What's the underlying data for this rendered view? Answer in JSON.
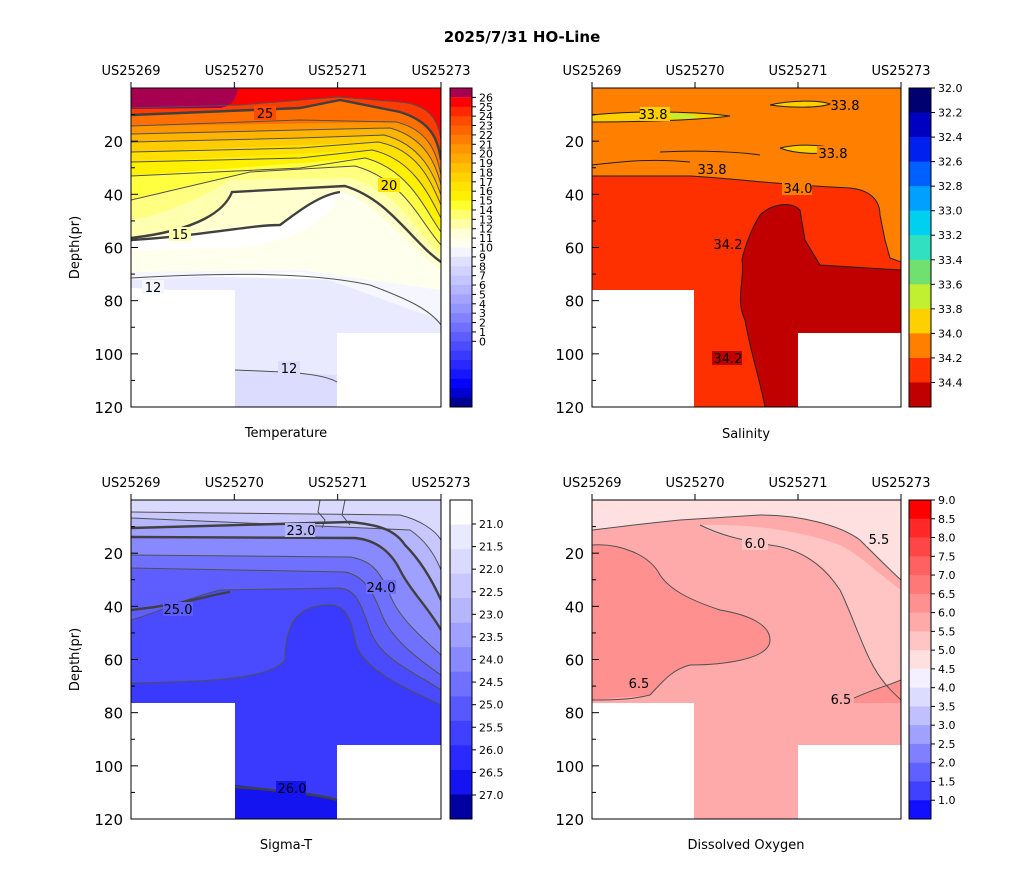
{
  "figure": {
    "title": "2025/7/31  HO-Line"
  },
  "chart_data": [
    {
      "type": "heatmap",
      "title": "Temperature",
      "ylabel": "Depth(pr)",
      "stations": [
        "US25269",
        "US25270",
        "US25271",
        "US25273"
      ],
      "yticks": [
        20,
        40,
        60,
        80,
        100,
        120
      ],
      "ylim": [
        0,
        120
      ],
      "colorbar": {
        "ticks": [
          "26",
          "25",
          "24",
          "23",
          "22",
          "21",
          "20",
          "19",
          "18",
          "17",
          "16",
          "15",
          "14",
          "13",
          "12",
          "11",
          "10",
          "9",
          "8",
          "7",
          "6",
          "5",
          "4",
          "3",
          "2",
          "1",
          "0"
        ]
      },
      "contour_labels": [
        "25",
        "20",
        "15",
        "12",
        "12"
      ],
      "colors": {
        "warm": [
          "#ff0000",
          "#ff2800",
          "#ff4a00",
          "#ff6400",
          "#ff7d00",
          "#ff9600",
          "#ffaa00",
          "#ffc000",
          "#ffd200",
          "#ffe400",
          "#fff000",
          "#ffff30",
          "#ffff70",
          "#ffffa8",
          "#ffffd8",
          "#ffffee",
          "#f4f4ff"
        ],
        "cool": [
          "#e0e0ff",
          "#d2d2ff",
          "#c4c4ff",
          "#b4b4ff",
          "#a4a4ff",
          "#9494ff",
          "#8282ff",
          "#7070ff",
          "#5e5eff",
          "#4c4cff",
          "#3a3aff",
          "#2828ff",
          "#1616ff",
          "#0404f8",
          "#0000d0",
          "#000090"
        ],
        "top": "#a80050"
      }
    },
    {
      "type": "heatmap",
      "title": "Salinity",
      "stations": [
        "US25269",
        "US25270",
        "US25271",
        "US25273"
      ],
      "yticks": [
        20,
        40,
        60,
        80,
        100,
        120
      ],
      "ylim": [
        0,
        120
      ],
      "colorbar": {
        "ticks": [
          "32.0",
          "32.2",
          "32.4",
          "32.6",
          "32.8",
          "33.0",
          "33.2",
          "33.4",
          "33.6",
          "33.8",
          "34.0",
          "34.2",
          "34.4"
        ]
      },
      "contour_labels": [
        "33.8",
        "33.8",
        "33.8",
        "33.8",
        "34.0",
        "34.2",
        "34.2"
      ],
      "colors": [
        "#000070",
        "#0000c0",
        "#0020f0",
        "#0060ff",
        "#00a0ff",
        "#00d0f0",
        "#30e0c0",
        "#70e070",
        "#c0f030",
        "#ffd000",
        "#ff8000",
        "#ff3000",
        "#c00000"
      ]
    },
    {
      "type": "heatmap",
      "title": "Sigma-T",
      "ylabel": "Depth(pr)",
      "stations": [
        "US25269",
        "US25270",
        "US25271",
        "US25273"
      ],
      "yticks": [
        20,
        40,
        60,
        80,
        100,
        120
      ],
      "ylim": [
        0,
        120
      ],
      "colorbar": {
        "ticks": [
          "21.0",
          "21.5",
          "22.0",
          "22.5",
          "23.0",
          "23.5",
          "24.0",
          "24.5",
          "25.0",
          "25.5",
          "26.0",
          "26.5",
          "27.0"
        ]
      },
      "contour_labels": [
        "23.0",
        "24.0",
        "25.0",
        "26.0"
      ],
      "colors": [
        "#ffffff",
        "#eaeaff",
        "#dadaff",
        "#c8c8ff",
        "#b6b6ff",
        "#a0a0ff",
        "#8888ff",
        "#7070ff",
        "#5858ff",
        "#4040ff",
        "#2a2aff",
        "#1414f0",
        "#0000a0"
      ]
    },
    {
      "type": "heatmap",
      "title": "Dissolved Oxygen",
      "stations": [
        "US25269",
        "US25270",
        "US25271",
        "US25273"
      ],
      "yticks": [
        20,
        40,
        60,
        80,
        100,
        120
      ],
      "ylim": [
        0,
        120
      ],
      "colorbar": {
        "ticks": [
          "9.0",
          "8.5",
          "8.0",
          "7.5",
          "7.0",
          "6.5",
          "6.0",
          "5.5",
          "5.0",
          "4.5",
          "4.0",
          "3.5",
          "3.0",
          "2.5",
          "2.0",
          "1.5",
          "1.0"
        ]
      },
      "contour_labels": [
        "6.0",
        "5.5",
        "6.5",
        "6.5"
      ],
      "colors": [
        "#ff0000",
        "#ff2828",
        "#ff4646",
        "#ff6060",
        "#ff7878",
        "#ff9090",
        "#ffaaaa",
        "#ffc4c4",
        "#ffe0e0",
        "#f4f0ff",
        "#dcdcff",
        "#c0c0ff",
        "#a0a0ff",
        "#8080ff",
        "#6060ff",
        "#4040ff",
        "#1010ff"
      ]
    }
  ]
}
